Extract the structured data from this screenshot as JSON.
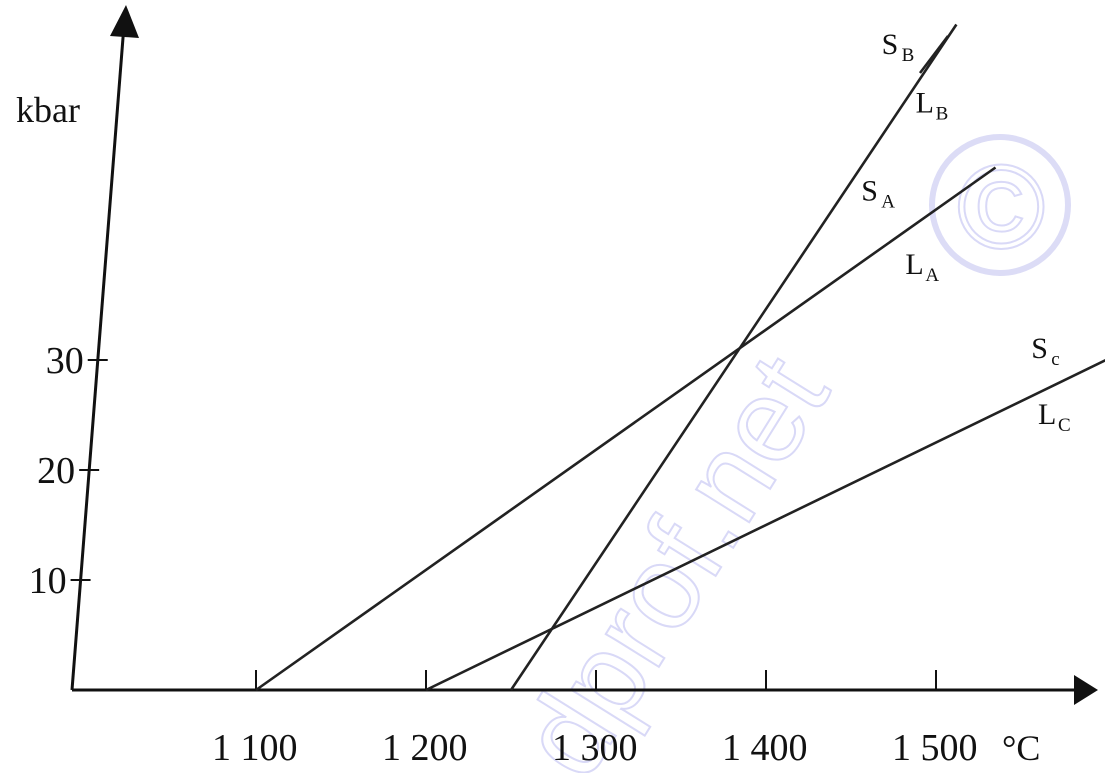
{
  "chart_data": {
    "type": "line",
    "xlabel": "°C",
    "ylabel": "kbar",
    "xlim": [
      1000,
      1500
    ],
    "ylim": [
      0,
      55
    ],
    "x_ticks": [
      {
        "value": 1100,
        "label": "1 100"
      },
      {
        "value": 1200,
        "label": "1 200"
      },
      {
        "value": 1300,
        "label": "1 300"
      },
      {
        "value": 1400,
        "label": "1 400"
      },
      {
        "value": 1500,
        "label": "1 500"
      }
    ],
    "y_ticks": [
      {
        "value": 10,
        "label": "10"
      },
      {
        "value": 20,
        "label": "20"
      },
      {
        "value": 30,
        "label": "30"
      }
    ],
    "series": [
      {
        "id": "A",
        "points": [
          [
            1100,
            0
          ],
          [
            1535,
            47.5
          ]
        ],
        "labels": [
          {
            "main": "S",
            "sub": "A",
            "x": 1456,
            "y": 44.5
          },
          {
            "main": "L",
            "sub": "A",
            "x": 1482,
            "y": 37.8
          }
        ]
      },
      {
        "id": "B",
        "points": [
          [
            1250,
            0
          ],
          [
            1512,
            60.5
          ]
        ],
        "labels": [
          {
            "main": "S",
            "sub": "B",
            "x": 1468,
            "y": 57.8
          },
          {
            "main": "L",
            "sub": "B",
            "x": 1488,
            "y": 52.5
          }
        ]
      },
      {
        "id": "C",
        "points": [
          [
            1200,
            0
          ],
          [
            1600,
            30
          ]
        ],
        "labels": [
          {
            "main": "S",
            "sub": "c",
            "x": 1556,
            "y": 30.2
          },
          {
            "main": "L",
            "sub": "C",
            "x": 1560,
            "y": 24.2
          }
        ]
      }
    ],
    "grid": false,
    "legend": "none"
  },
  "watermark": {
    "text": "dprof.net",
    "symbol": "©"
  }
}
